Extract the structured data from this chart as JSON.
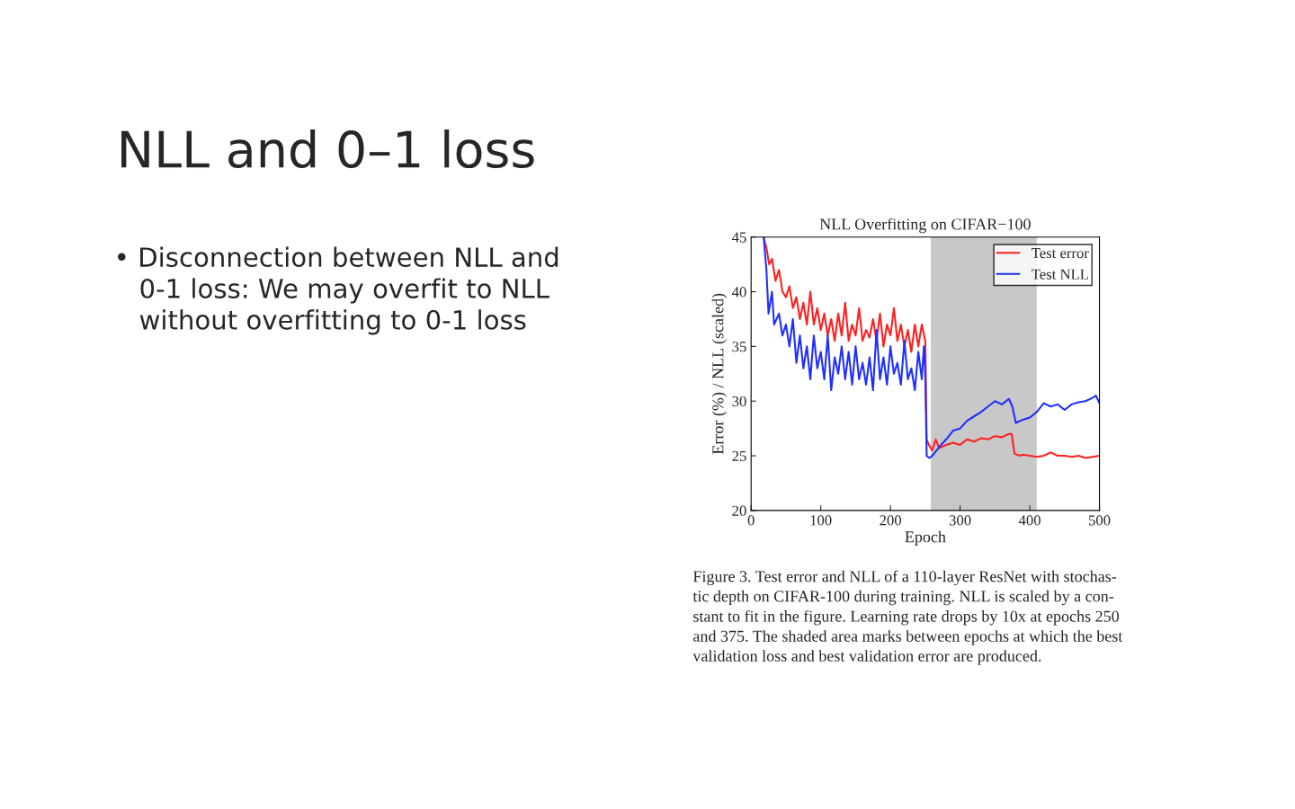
{
  "chart_data": {
    "type": "line",
    "title": "NLL Overfitting on CIFAR−100",
    "xlabel": "Epoch",
    "ylabel": "Error (%) / NLL (scaled)",
    "xlim": [
      0,
      500
    ],
    "xticks": [
      0,
      100,
      200,
      300,
      400,
      500
    ],
    "ylim": [
      20,
      45
    ],
    "yticks": [
      20,
      25,
      30,
      35,
      40,
      45
    ],
    "grid": false,
    "legend": "top right",
    "marker": "none",
    "line_style": "solid",
    "bands": [
      {
        "axis": "x",
        "from": 258,
        "to": 410,
        "color": "#c8c8c8"
      }
    ],
    "series": [
      {
        "name": "Test error",
        "color": "#ff2020",
        "x": [
          18,
          22,
          26,
          30,
          35,
          40,
          45,
          50,
          55,
          60,
          65,
          70,
          75,
          80,
          85,
          90,
          95,
          100,
          105,
          110,
          115,
          120,
          125,
          130,
          135,
          140,
          145,
          150,
          155,
          160,
          165,
          170,
          175,
          180,
          185,
          190,
          195,
          200,
          205,
          210,
          215,
          220,
          225,
          230,
          235,
          240,
          245,
          250,
          252,
          255,
          260,
          265,
          270,
          280,
          290,
          300,
          310,
          320,
          330,
          340,
          350,
          360,
          370,
          374,
          378,
          385,
          390,
          400,
          410,
          420,
          430,
          440,
          450,
          460,
          470,
          480,
          490,
          500
        ],
        "values": [
          45,
          44,
          42.5,
          43,
          41,
          42,
          40,
          39.5,
          40.5,
          38.5,
          39.5,
          37.5,
          39,
          37,
          40,
          37,
          38.5,
          36.5,
          38,
          36,
          37.5,
          35.5,
          38,
          36,
          39,
          35.5,
          37,
          36,
          38.5,
          35.5,
          36.5,
          35.8,
          37.5,
          35.5,
          38,
          35,
          37,
          36,
          38.5,
          35.5,
          37,
          35,
          36.5,
          34.5,
          37,
          35,
          37,
          35.5,
          26.5,
          26,
          25.5,
          26.5,
          25.7,
          26,
          26.2,
          26,
          26.5,
          26.3,
          26.6,
          26.5,
          26.8,
          26.7,
          27,
          27,
          25.2,
          25,
          25.1,
          25,
          24.9,
          25,
          25.3,
          25,
          25,
          24.9,
          25,
          24.8,
          24.9,
          25
        ]
      },
      {
        "name": "Test NLL",
        "color": "#1f2fff",
        "x": [
          18,
          22,
          25,
          30,
          33,
          40,
          45,
          50,
          55,
          60,
          65,
          70,
          75,
          80,
          85,
          90,
          95,
          100,
          105,
          110,
          115,
          120,
          125,
          130,
          135,
          140,
          145,
          150,
          155,
          160,
          165,
          170,
          175,
          180,
          185,
          190,
          195,
          200,
          205,
          210,
          215,
          220,
          225,
          230,
          235,
          240,
          245,
          248,
          250,
          252,
          256,
          260,
          270,
          280,
          290,
          300,
          310,
          320,
          330,
          340,
          350,
          360,
          370,
          375,
          380,
          390,
          400,
          410,
          420,
          430,
          440,
          450,
          460,
          470,
          480,
          490,
          495,
          500
        ],
        "values": [
          45,
          42,
          38,
          40,
          37,
          38,
          36,
          37,
          35,
          37.5,
          33.5,
          36,
          33,
          35,
          32,
          36,
          33,
          34.5,
          32,
          36,
          31,
          34,
          32.5,
          35,
          32,
          34.5,
          31.5,
          35,
          32,
          33.5,
          31.5,
          34,
          31,
          36.5,
          32,
          34,
          31.5,
          35,
          32.5,
          33.5,
          31.5,
          35.5,
          32,
          33,
          31,
          34.5,
          32,
          35,
          32.5,
          25,
          24.8,
          25,
          25.8,
          26.5,
          27.3,
          27.5,
          28.2,
          28.6,
          29,
          29.5,
          30,
          29.7,
          30.2,
          29.5,
          28,
          28.3,
          28.5,
          29,
          29.8,
          29.5,
          29.7,
          29.2,
          29.7,
          29.9,
          30,
          30.3,
          30.5,
          29.8
        ]
      }
    ],
    "annotations": [
      "NLL and 0–1 loss",
      "• Disconnection between NLL and\n   0-1 loss: We may overfit to NLL\n   without overfitting to 0-1 loss",
      "Figure 3. Test error and NLL of a 110-layer ResNet with stochas-\ntic depth on CIFAR-100 during training. NLL is scaled by a con-\nstant to fit in the figure. Learning rate drops by 10x at epochs 250\nand 375. The shaded area marks between epochs at which the best\nvalidation loss and best validation error are produced."
    ]
  }
}
